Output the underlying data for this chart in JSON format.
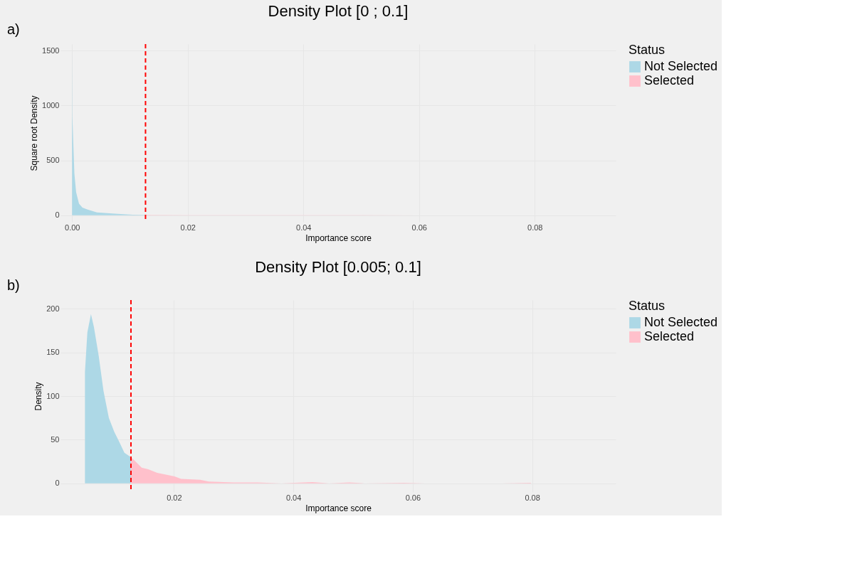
{
  "chart_data": [
    {
      "type": "area",
      "title": "Density Plot [0 ; 0.1]",
      "xlabel": "Importance score",
      "ylabel": "Square root Density",
      "legend_title": "Status",
      "legend": "right",
      "grid": true,
      "annotations": [
        "a)"
      ],
      "xlim": [
        -0.002,
        0.094
      ],
      "xticks": [
        {
          "value": 0,
          "label": "0.00"
        },
        0.02,
        0.04,
        0.06,
        0.08
      ],
      "ylim": [
        -60,
        1560
      ],
      "yticks": [
        0,
        500,
        1000,
        1500
      ],
      "series": [
        {
          "name": "Not Selected",
          "color": "#add8e6",
          "x": [
            0,
            5e-05,
            0.0004,
            0.0007,
            0.0012,
            0.0018,
            0.0027,
            0.0043,
            0.0074,
            0.0105,
            0.0127
          ],
          "values": [
            1500,
            900,
            380,
            210,
            105,
            70,
            52,
            26,
            14,
            5,
            3
          ]
        },
        {
          "name": "Selected",
          "color": "#ffc0cb",
          "x": [
            0.0127,
            0.02,
            0.03,
            0.04,
            0.05,
            0.06,
            0.07,
            0.08
          ],
          "values": [
            3,
            2,
            1,
            1,
            1,
            0,
            0,
            0
          ]
        }
      ],
      "ref_lines": [
        {
          "axis": "x",
          "value": 0.0127,
          "color": "#ff0000",
          "line_style": "dashed"
        }
      ]
    },
    {
      "type": "area",
      "title": "Density Plot [0.005; 0.1]",
      "xlabel": "Importance score",
      "ylabel": "Density",
      "legend_title": "Status",
      "legend": "right",
      "grid": true,
      "annotations": [
        "b)"
      ],
      "xlim": [
        0.001,
        0.094
      ],
      "xticks": [
        0.02,
        0.04,
        0.06,
        0.08
      ],
      "ylim": [
        -10,
        210
      ],
      "yticks": [
        0,
        50,
        100,
        150,
        200
      ],
      "series": [
        {
          "name": "Not Selected",
          "color": "#add8e6",
          "x": [
            0.0051,
            0.0055,
            0.0061,
            0.0066,
            0.0074,
            0.0082,
            0.0091,
            0.01,
            0.0108,
            0.0117,
            0.0128
          ],
          "values": [
            128,
            173,
            194,
            179,
            146,
            106,
            75,
            59,
            48,
            35,
            30
          ]
        },
        {
          "name": "Selected",
          "color": "#ffc0cb",
          "x": [
            0.0128,
            0.0134,
            0.0146,
            0.0157,
            0.0172,
            0.0201,
            0.0212,
            0.0244,
            0.0258,
            0.03,
            0.034,
            0.038,
            0.0432,
            0.046,
            0.0494,
            0.052,
            0.0585,
            0.062,
            0.075,
            0.0798
          ],
          "values": [
            30,
            26,
            18,
            16,
            12,
            8,
            5,
            4,
            2,
            1,
            1,
            0,
            1.5,
            0,
            1,
            0,
            0.5,
            0,
            0,
            0.5
          ]
        }
      ],
      "ref_lines": [
        {
          "axis": "x",
          "value": 0.0128,
          "color": "#ff0000",
          "line_style": "dashed"
        }
      ]
    }
  ]
}
